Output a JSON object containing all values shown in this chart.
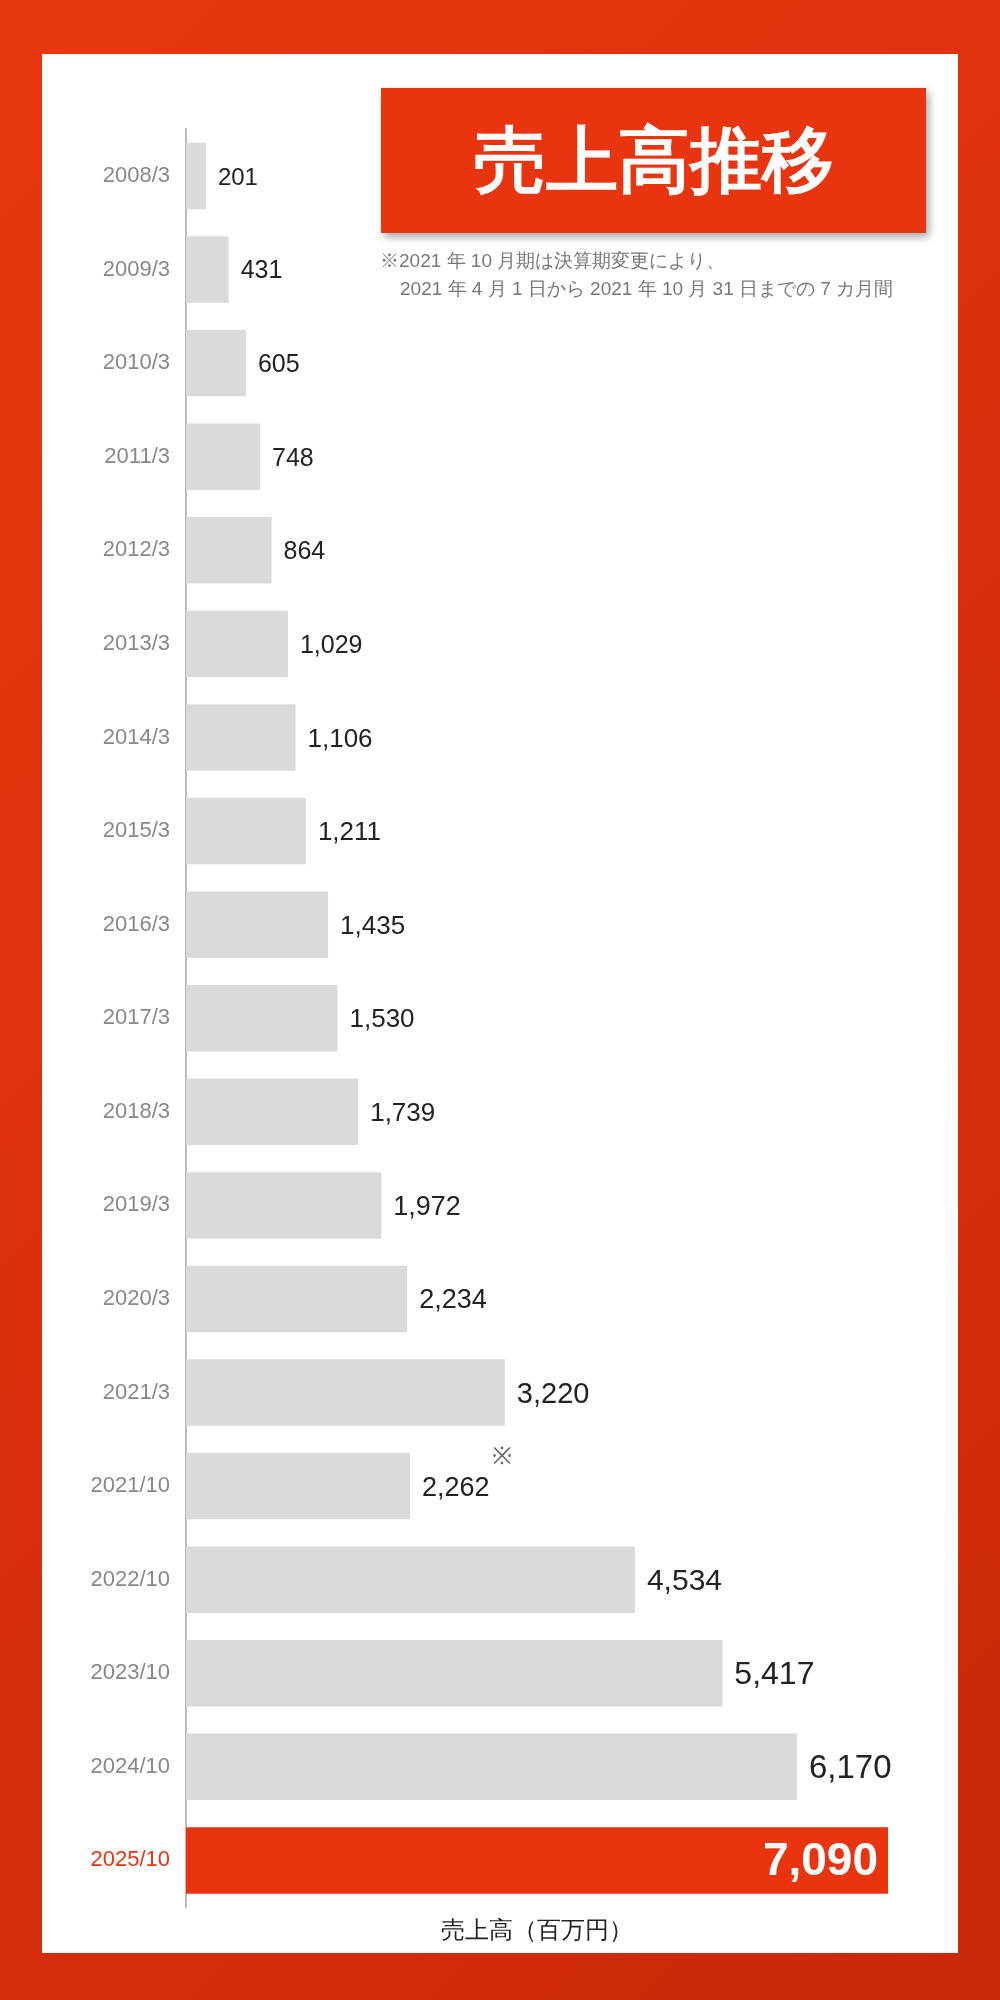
{
  "chart_data": {
    "type": "bar",
    "orientation": "horizontal",
    "title": "売上高推移",
    "xlabel": "売上高（百万円）",
    "categories": [
      "2008/3",
      "2009/3",
      "2010/3",
      "2011/3",
      "2012/3",
      "2013/3",
      "2014/3",
      "2015/3",
      "2016/3",
      "2017/3",
      "2018/3",
      "2019/3",
      "2020/3",
      "2021/3",
      "2021/10",
      "2022/10",
      "2023/10",
      "2024/10",
      "2025/10"
    ],
    "values": [
      201,
      431,
      605,
      748,
      864,
      1029,
      1106,
      1211,
      1435,
      1530,
      1739,
      1972,
      2234,
      3220,
      2262,
      4534,
      5417,
      6170,
      7090
    ],
    "colors": [
      "#d9dada",
      "#d9dada",
      "#d9dada",
      "#d9dada",
      "#d9dada",
      "#d9dada",
      "#d9dada",
      "#d9dada",
      "#d9dada",
      "#d9dada",
      "#d9dada",
      "#d9dada",
      "#d9dada",
      "#d9dada",
      "#d9dada",
      "#d9dada",
      "#d9dada",
      "#d9dada",
      "#e8340f"
    ],
    "value_labels": [
      "201",
      "431",
      "605",
      "748",
      "864",
      "1,029",
      "1,106",
      "1,211",
      "1,435",
      "1,530",
      "1,739",
      "1,972",
      "2,234",
      "3,220",
      "2,262",
      "4,534",
      "5,417",
      "6,170",
      "7,090"
    ],
    "grid": false,
    "legend": false,
    "annotations": [
      "※2021 年 10 月期は決算期変更により、",
      "2021 年 4 月 1 日から 2021 年 10 月 31 日までの 7 カ月間",
      "※"
    ]
  }
}
